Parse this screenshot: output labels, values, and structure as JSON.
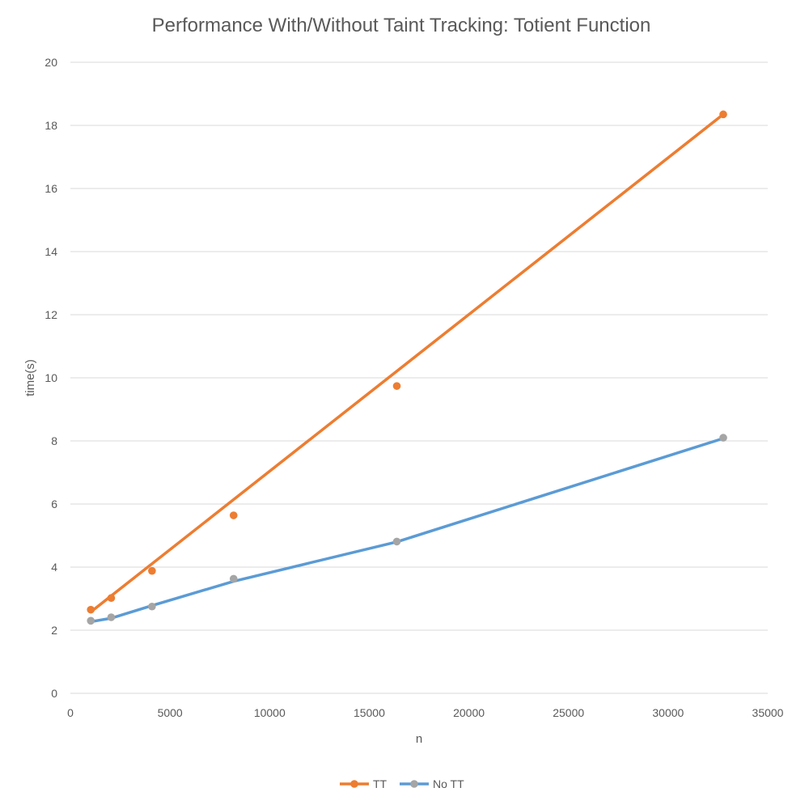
{
  "chart_data": {
    "type": "scatter",
    "title": "Performance With/Without Taint Tracking: Totient Function",
    "xlabel": "n",
    "ylabel": "time(s)",
    "xlim": [
      0,
      35000
    ],
    "ylim": [
      0,
      20
    ],
    "xticks": [
      0,
      5000,
      10000,
      15000,
      20000,
      25000,
      30000,
      35000
    ],
    "yticks": [
      0,
      2,
      4,
      6,
      8,
      10,
      12,
      14,
      16,
      18,
      20
    ],
    "grid": "horizontal",
    "legend_position": "bottom",
    "series": [
      {
        "name": "TT",
        "color": "#ed7d31",
        "marker_color": "#ed7d31",
        "x": [
          1024,
          2048,
          4096,
          8192,
          16384,
          32768
        ],
        "y": [
          2.65,
          3.02,
          3.88,
          5.64,
          9.74,
          18.35
        ],
        "trendline": {
          "x": [
            1024,
            32768
          ],
          "y": [
            2.58,
            18.35
          ]
        }
      },
      {
        "name": "No TT",
        "color": "#5b9bd5",
        "marker_color": "#a5a5a5",
        "x": [
          1024,
          2048,
          4096,
          8192,
          16384,
          32768
        ],
        "y": [
          2.3,
          2.41,
          2.75,
          3.63,
          4.81,
          8.1
        ],
        "trendline": {
          "x": [
            1024,
            2048,
            4096,
            8192,
            16384,
            32768
          ],
          "y": [
            2.27,
            2.38,
            2.78,
            3.55,
            4.8,
            8.08
          ]
        }
      }
    ]
  }
}
